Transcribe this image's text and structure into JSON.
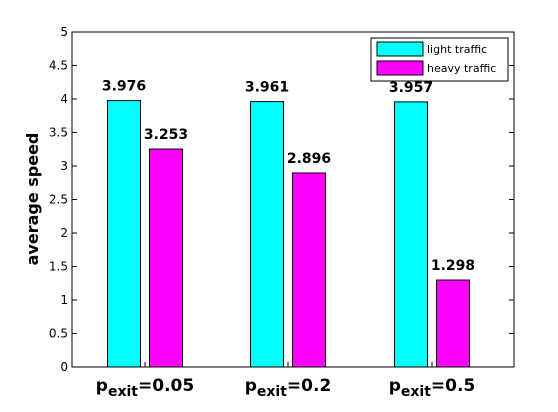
{
  "chart_data": {
    "type": "bar",
    "categories": [
      {
        "main": "p",
        "sub": "exit",
        "rest": "=0.05"
      },
      {
        "main": "p",
        "sub": "exit",
        "rest": "=0.2"
      },
      {
        "main": "p",
        "sub": "exit",
        "rest": "=0.5"
      }
    ],
    "series": [
      {
        "name": "light traffic",
        "color": "#00ffff",
        "values": [
          3.976,
          3.961,
          3.957
        ],
        "labels": [
          "3.976",
          "3.961",
          "3.957"
        ]
      },
      {
        "name": "heavy traffic",
        "color": "#ff00ff",
        "values": [
          3.253,
          2.896,
          1.298
        ],
        "labels": [
          "3.253",
          "2.896",
          "1.298"
        ]
      }
    ],
    "ylabel": "average speed",
    "ylim": [
      0,
      5
    ],
    "yticks": [
      "0",
      "0.5",
      "1",
      "1.5",
      "2",
      "2.5",
      "3",
      "3.5",
      "4",
      "4.5",
      "5"
    ],
    "grid": false,
    "legend": "top-right"
  }
}
